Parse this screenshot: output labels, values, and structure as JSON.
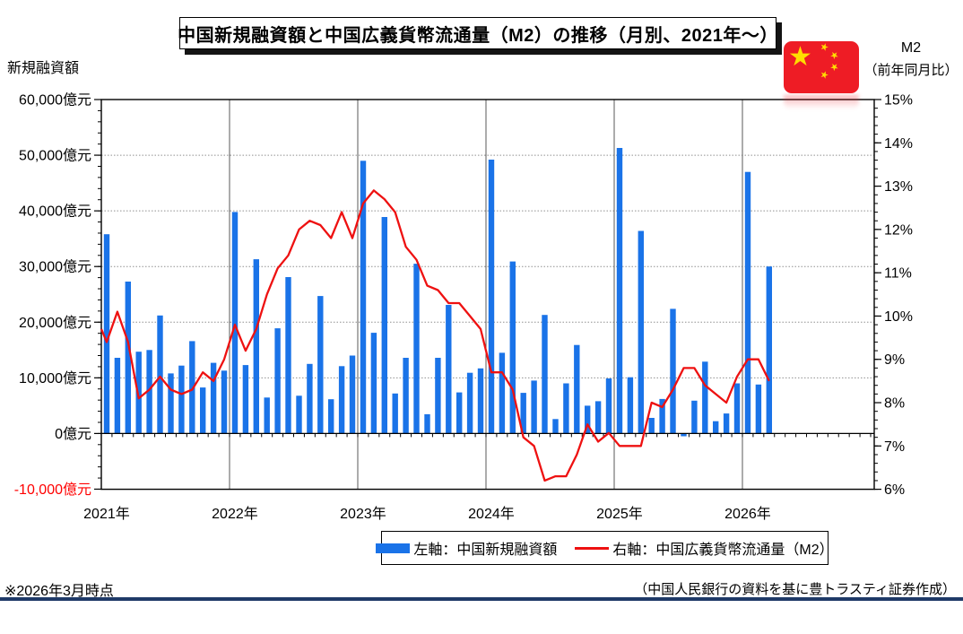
{
  "title": "中国新規融資額と中国広義貨幣流通量（M2）の推移（月別、2021年～）",
  "left_axis_title": "新規融資額",
  "right_axis_title_line1": "M2",
  "right_axis_title_line2": "（前年同月比）",
  "legend": {
    "bars_label": "左軸：中国新規融資額",
    "line_label": "右軸：中国広義貨幣流通量（M2）"
  },
  "footer": {
    "note": "※2026年3月時点",
    "source": "（中国人民銀行の資料を基に豊トラスティ証券作成）"
  },
  "flag": {
    "big_star": "★",
    "small_star": "★"
  },
  "colors": {
    "bar": "#1a73e8",
    "line": "#ee1111",
    "negative_tick_label": "#ff0000",
    "grid": "#909090",
    "year_line": "#595959",
    "frame": "#000000",
    "bottom_rule": "#1f3a68",
    "flag_red": "#ee1c25",
    "flag_star": "#ffde00"
  },
  "chart_data": {
    "type": "bar",
    "subtype": "bar+line dual axis, monthly time series",
    "period_start": "2021-01",
    "period_end": "2026-03",
    "x_year_labels": [
      "2021年",
      "2022年",
      "2023年",
      "2024年",
      "2025年",
      "2026年"
    ],
    "left_axis": {
      "unit": "億元",
      "tick_labels": [
        "60,000億元",
        "50,000億元",
        "40,000億元",
        "30,000億元",
        "20,000億元",
        "10,000億元",
        "0億元",
        "-10,000億元"
      ],
      "tick_values": [
        60000,
        50000,
        40000,
        30000,
        20000,
        10000,
        0,
        -10000
      ],
      "range": [
        -10000,
        60000
      ],
      "minor_step": 2000
    },
    "right_axis": {
      "unit": "%",
      "tick_labels": [
        "15%",
        "14%",
        "13%",
        "12%",
        "11%",
        "10%",
        "9%",
        "8%",
        "7%",
        "6%"
      ],
      "tick_values": [
        15,
        14,
        13,
        12,
        11,
        10,
        9,
        8,
        7,
        6
      ],
      "range": [
        6,
        15
      ],
      "minor_step": 0.2
    },
    "grid": "horizontal dotted at left-axis majors, solid vertical at year boundaries",
    "legend_position": "bottom",
    "series": [
      {
        "name": "左軸：中国新規融資額",
        "type": "bar",
        "axis": "left",
        "unit": "億元",
        "values": [
          35800,
          13600,
          27300,
          14700,
          15000,
          21200,
          10800,
          12200,
          16600,
          8262,
          12700,
          11300,
          39800,
          12300,
          31300,
          6454,
          18900,
          28100,
          6790,
          12500,
          24700,
          6152,
          12100,
          14000,
          49000,
          18100,
          38900,
          7188,
          13600,
          30500,
          3459,
          13600,
          23100,
          7384,
          10900,
          11700,
          49200,
          14500,
          30900,
          7300,
          9500,
          21300,
          2600,
          9000,
          15900,
          5000,
          5800,
          9900,
          51300,
          10100,
          36400,
          2800,
          6200,
          22400,
          -500,
          5900,
          12900,
          2200,
          3600,
          9000,
          47000,
          8800,
          30000
        ]
      },
      {
        "name": "右軸：中国広義貨幣流通量（M2）",
        "type": "line",
        "axis": "right",
        "unit": "%",
        "axis_edge_lead_in_value": 9.7,
        "values": [
          9.4,
          10.1,
          9.4,
          8.1,
          8.3,
          8.6,
          8.3,
          8.2,
          8.3,
          8.7,
          8.5,
          9.0,
          9.8,
          9.2,
          9.7,
          10.5,
          11.1,
          11.4,
          12.0,
          12.2,
          12.1,
          11.8,
          12.4,
          11.8,
          12.6,
          12.9,
          12.7,
          12.4,
          11.6,
          11.3,
          10.7,
          10.6,
          10.3,
          10.3,
          10.0,
          9.7,
          8.7,
          8.7,
          8.3,
          7.2,
          7.0,
          6.2,
          6.3,
          6.3,
          6.8,
          7.5,
          7.1,
          7.3,
          7.0,
          7.0,
          7.0,
          8.0,
          7.9,
          8.3,
          8.8,
          8.8,
          8.4,
          8.2,
          8.0,
          8.6,
          9.0,
          9.0,
          8.5
        ]
      }
    ]
  }
}
